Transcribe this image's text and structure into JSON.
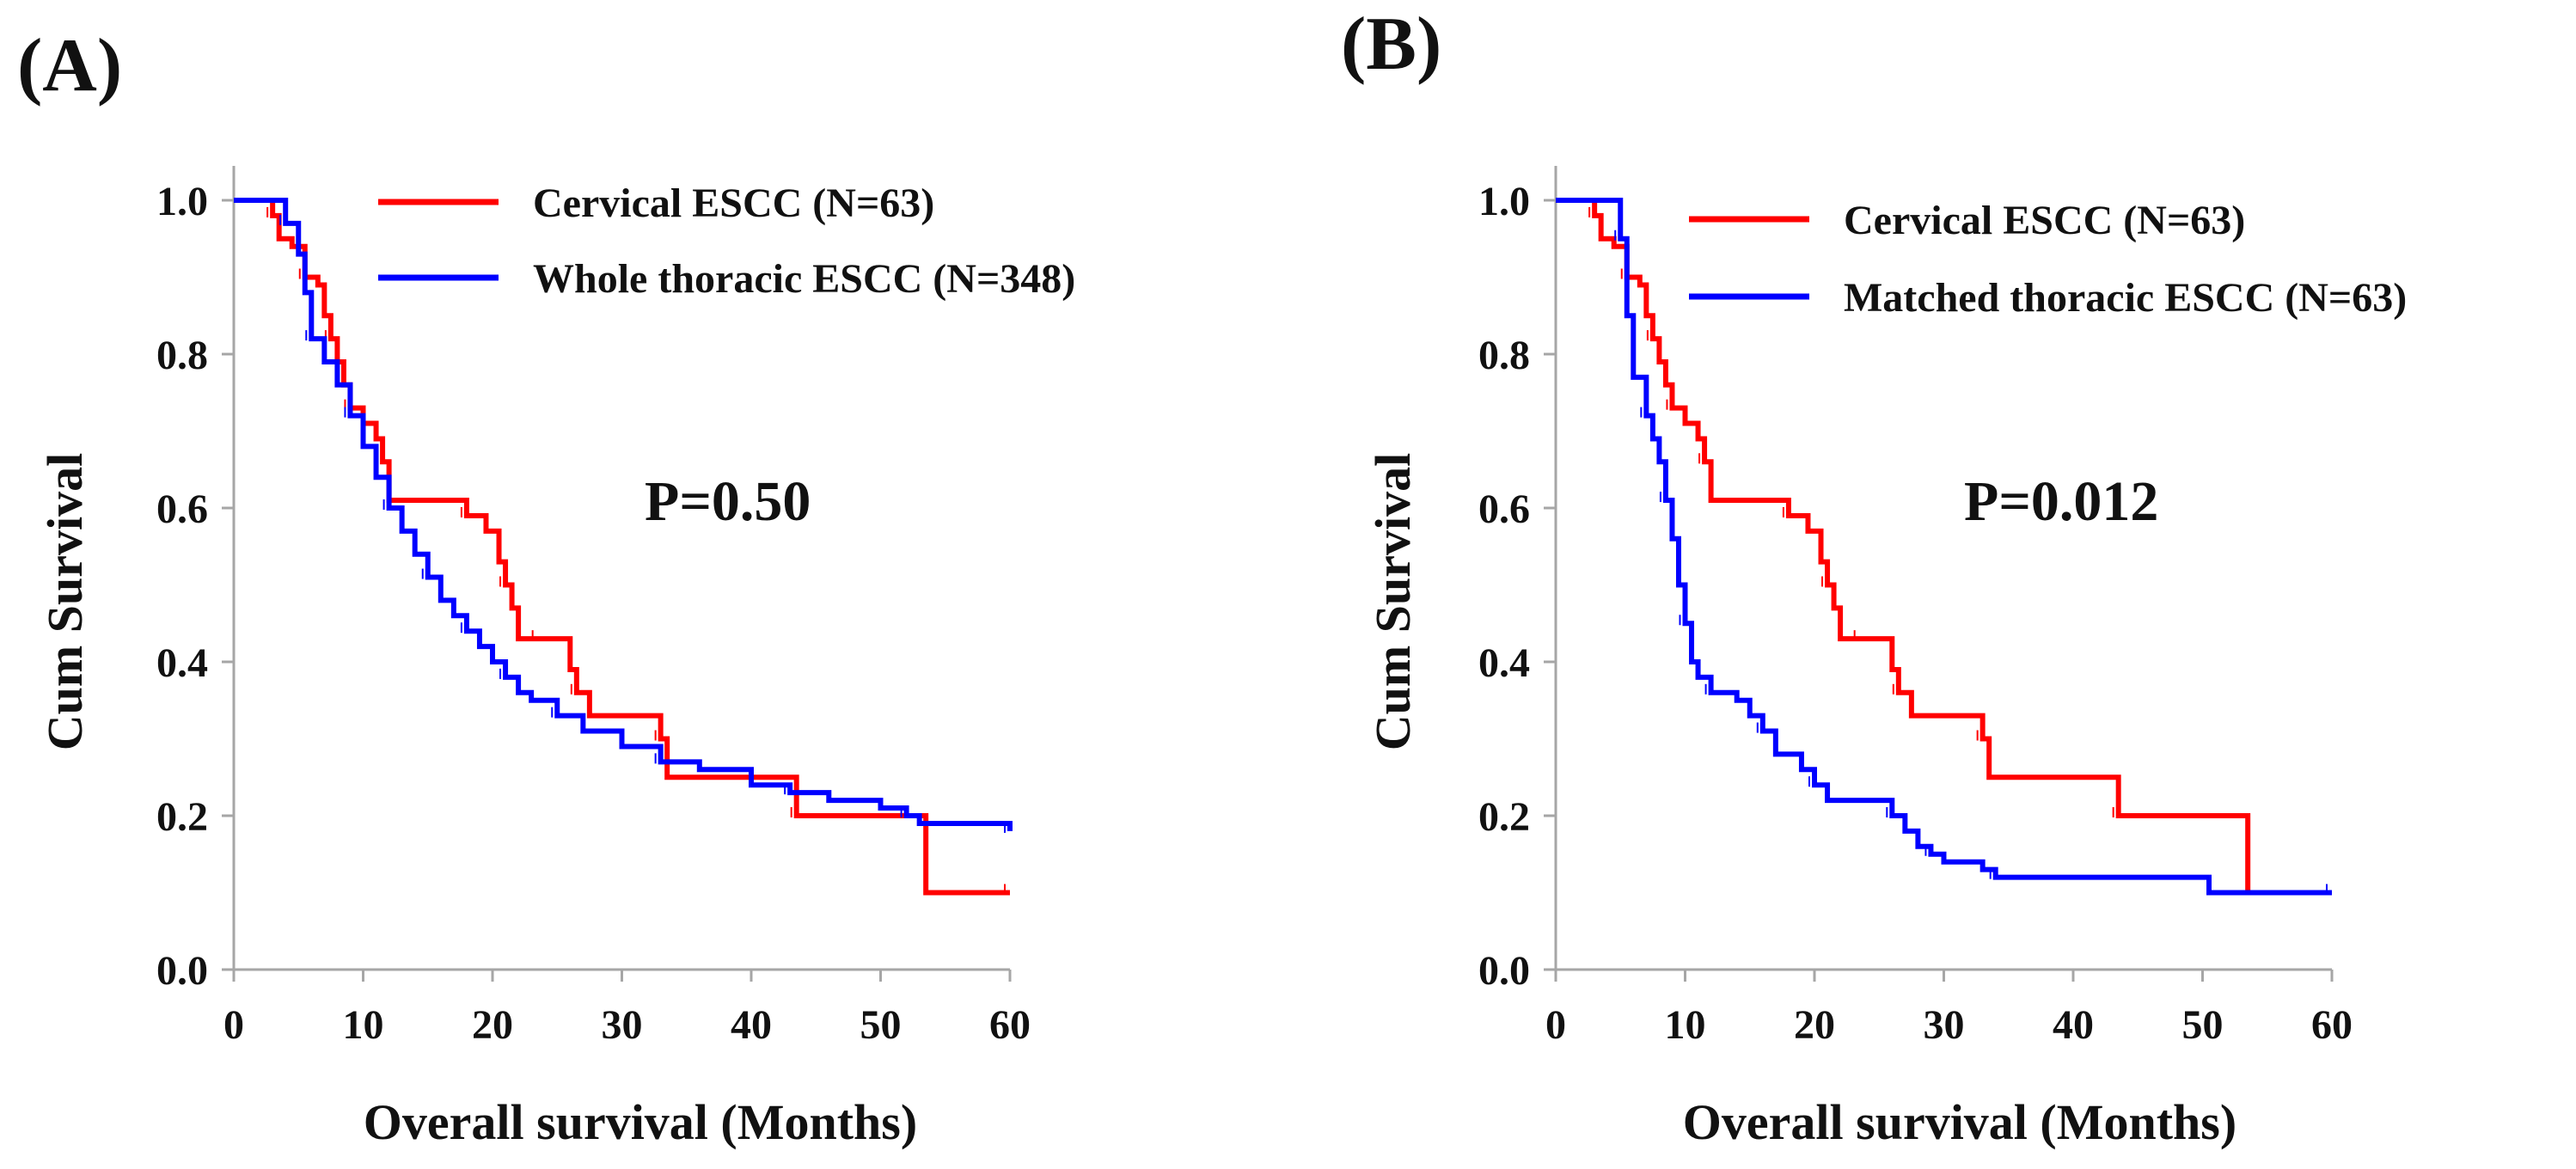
{
  "colors": {
    "cervical": "#ff0000",
    "thoracic": "#0000ff",
    "axis": "#a6a6a6",
    "text": "#111111"
  },
  "chart_data": [
    {
      "type": "line",
      "panel_label": "(A)",
      "xlabel": "Overall survival (Months)",
      "ylabel": "Cum Survival",
      "xlim": [
        0,
        60
      ],
      "ylim": [
        0,
        1.0
      ],
      "xticks": [
        "0",
        "10",
        "20",
        "30",
        "40",
        "50",
        "60"
      ],
      "yticks": [
        "0.0",
        "0.2",
        "0.4",
        "0.6",
        "0.8",
        "1.0"
      ],
      "annotation": "P=0.50",
      "legend_position": "top-right",
      "series": [
        {
          "name": "Cervical ESCC (N=63)",
          "color": "#ff0000",
          "x": [
            0,
            2.5,
            3,
            3.5,
            4.5,
            5.5,
            6.5,
            7,
            7.5,
            8,
            8.5,
            9,
            10,
            11,
            11.5,
            12,
            17,
            18,
            19.5,
            20.5,
            21,
            21.5,
            22,
            23.5,
            25,
            26,
            26.5,
            27.5,
            29.5,
            33,
            33.5,
            43,
            43.5,
            53.5,
            53.5,
            60
          ],
          "y": [
            1.0,
            1.0,
            0.98,
            0.95,
            0.94,
            0.9,
            0.89,
            0.85,
            0.82,
            0.79,
            0.76,
            0.73,
            0.71,
            0.69,
            0.66,
            0.61,
            0.61,
            0.59,
            0.57,
            0.53,
            0.5,
            0.47,
            0.43,
            0.43,
            0.43,
            0.39,
            0.36,
            0.33,
            0.33,
            0.3,
            0.25,
            0.25,
            0.2,
            0.2,
            0.1,
            0.1
          ]
        },
        {
          "name": "Whole thoracic ESCC (N=348)",
          "color": "#0000ff",
          "x": [
            0,
            3,
            4,
            5,
            5.5,
            6,
            7,
            8,
            9,
            10,
            11,
            12,
            13,
            14,
            15,
            16,
            17,
            18,
            19,
            20,
            21,
            22,
            23,
            25,
            27,
            30,
            33,
            36,
            40,
            43,
            46,
            50,
            52,
            53,
            55,
            60
          ],
          "y": [
            1.0,
            1.0,
            0.97,
            0.93,
            0.88,
            0.82,
            0.79,
            0.76,
            0.72,
            0.68,
            0.64,
            0.6,
            0.57,
            0.54,
            0.51,
            0.48,
            0.46,
            0.44,
            0.42,
            0.4,
            0.38,
            0.36,
            0.35,
            0.33,
            0.31,
            0.29,
            0.27,
            0.26,
            0.24,
            0.23,
            0.22,
            0.21,
            0.2,
            0.19,
            0.19,
            0.18
          ]
        }
      ]
    },
    {
      "type": "line",
      "panel_label": "(B)",
      "xlabel": "Overall survival (Months)",
      "ylabel": "Cum Survival",
      "xlim": [
        0,
        60
      ],
      "ylim": [
        0,
        1.0
      ],
      "xticks": [
        "0",
        "10",
        "20",
        "30",
        "40",
        "50",
        "60"
      ],
      "yticks": [
        "0.0",
        "0.2",
        "0.4",
        "0.6",
        "0.8",
        "1.0"
      ],
      "annotation": "P=0.012",
      "legend_position": "top-right",
      "series": [
        {
          "name": "Cervical ESCC (N=63)",
          "color": "#ff0000",
          "x": [
            0,
            2.5,
            3,
            3.5,
            4.5,
            5.5,
            6.5,
            7,
            7.5,
            8,
            8.5,
            9,
            10,
            11,
            11.5,
            12,
            17,
            18,
            19.5,
            20.5,
            21,
            21.5,
            22,
            23.5,
            25,
            26,
            26.5,
            27.5,
            29.5,
            33,
            33.5,
            43,
            43.5,
            53.5,
            53.5,
            60
          ],
          "y": [
            1.0,
            1.0,
            0.98,
            0.95,
            0.94,
            0.9,
            0.89,
            0.85,
            0.82,
            0.79,
            0.76,
            0.73,
            0.71,
            0.69,
            0.66,
            0.61,
            0.61,
            0.59,
            0.57,
            0.53,
            0.5,
            0.47,
            0.43,
            0.43,
            0.43,
            0.39,
            0.36,
            0.33,
            0.33,
            0.3,
            0.25,
            0.25,
            0.2,
            0.2,
            0.1,
            0.1
          ]
        },
        {
          "name": "Matched thoracic ESCC (N=63)",
          "color": "#0000ff",
          "x": [
            0,
            4.5,
            5,
            5.5,
            6,
            7,
            7.5,
            8,
            8.5,
            9,
            9.5,
            10,
            10.5,
            11,
            12,
            14,
            15,
            16,
            17,
            19,
            20,
            21,
            25,
            26,
            27,
            28,
            29,
            30,
            33,
            34,
            50,
            50.5,
            60
          ],
          "y": [
            1.0,
            1.0,
            0.95,
            0.85,
            0.77,
            0.72,
            0.69,
            0.66,
            0.61,
            0.56,
            0.5,
            0.45,
            0.4,
            0.38,
            0.36,
            0.35,
            0.33,
            0.31,
            0.28,
            0.26,
            0.24,
            0.22,
            0.22,
            0.2,
            0.18,
            0.16,
            0.15,
            0.14,
            0.13,
            0.12,
            0.12,
            0.1,
            0.1
          ]
        }
      ]
    }
  ]
}
